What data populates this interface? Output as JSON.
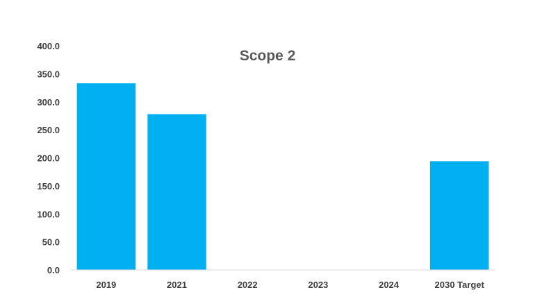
{
  "chart_data": {
    "type": "bar",
    "title": "Scope 2",
    "xlabel": "",
    "ylabel": "",
    "categories": [
      "2019",
      "2021",
      "2022",
      "2023",
      "2024",
      "2030 Target"
    ],
    "values": [
      333.0,
      278.0,
      0,
      0,
      0,
      194.0
    ],
    "ylim": [
      0,
      400
    ],
    "yticks": [
      "0.0",
      "50.0",
      "100.0",
      "150.0",
      "200.0",
      "250.0",
      "300.0",
      "350.0",
      "400.0"
    ],
    "ytick_values": [
      0,
      50,
      100,
      150,
      200,
      250,
      300,
      350,
      400
    ],
    "grid": false,
    "legend": "none",
    "colors": {
      "bar": "#00B0F0",
      "axis": "#D9D9D9",
      "title": "#595959",
      "tick_text": "#404040"
    }
  }
}
